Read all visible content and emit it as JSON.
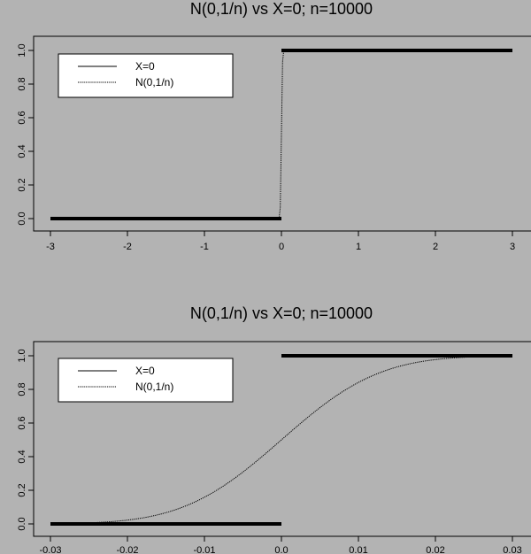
{
  "chart_data": [
    {
      "type": "line",
      "title": "N(0,1/n) vs X=0; n=10000",
      "xlabel": "",
      "ylabel": "",
      "xlim": [
        -3,
        3
      ],
      "ylim": [
        0,
        1
      ],
      "xticks": [
        "-3",
        "-2",
        "-1",
        "0",
        "1",
        "2",
        "3"
      ],
      "yticks": [
        "0.0",
        "0.2",
        "0.4",
        "0.6",
        "0.8",
        "1.0"
      ],
      "legend_position": "top-left",
      "grid": false,
      "series": [
        {
          "name": "X=0",
          "style": "solid-thick",
          "x": [
            -3,
            0,
            0,
            3
          ],
          "y": [
            0,
            0,
            1,
            1
          ]
        },
        {
          "name": "N(0,1/n)",
          "style": "dotted",
          "distribution": "normal",
          "mean": 0,
          "sd": 0.01
        }
      ]
    },
    {
      "type": "line",
      "title": "N(0,1/n) vs X=0; n=10000",
      "xlabel": "",
      "ylabel": "",
      "xlim": [
        -0.03,
        0.03
      ],
      "ylim": [
        0,
        1
      ],
      "xticks": [
        "-0.03",
        "-0.02",
        "-0.01",
        "0.0",
        "0.01",
        "0.02",
        "0.03"
      ],
      "yticks": [
        "0.0",
        "0.2",
        "0.4",
        "0.6",
        "0.8",
        "1.0"
      ],
      "legend_position": "top-left",
      "grid": false,
      "series": [
        {
          "name": "X=0",
          "style": "solid-thick",
          "x": [
            -0.03,
            0,
            0,
            0.03
          ],
          "y": [
            0,
            0,
            1,
            1
          ]
        },
        {
          "name": "N(0,1/n)",
          "style": "dotted",
          "distribution": "normal",
          "mean": 0,
          "sd": 0.01
        }
      ]
    }
  ]
}
